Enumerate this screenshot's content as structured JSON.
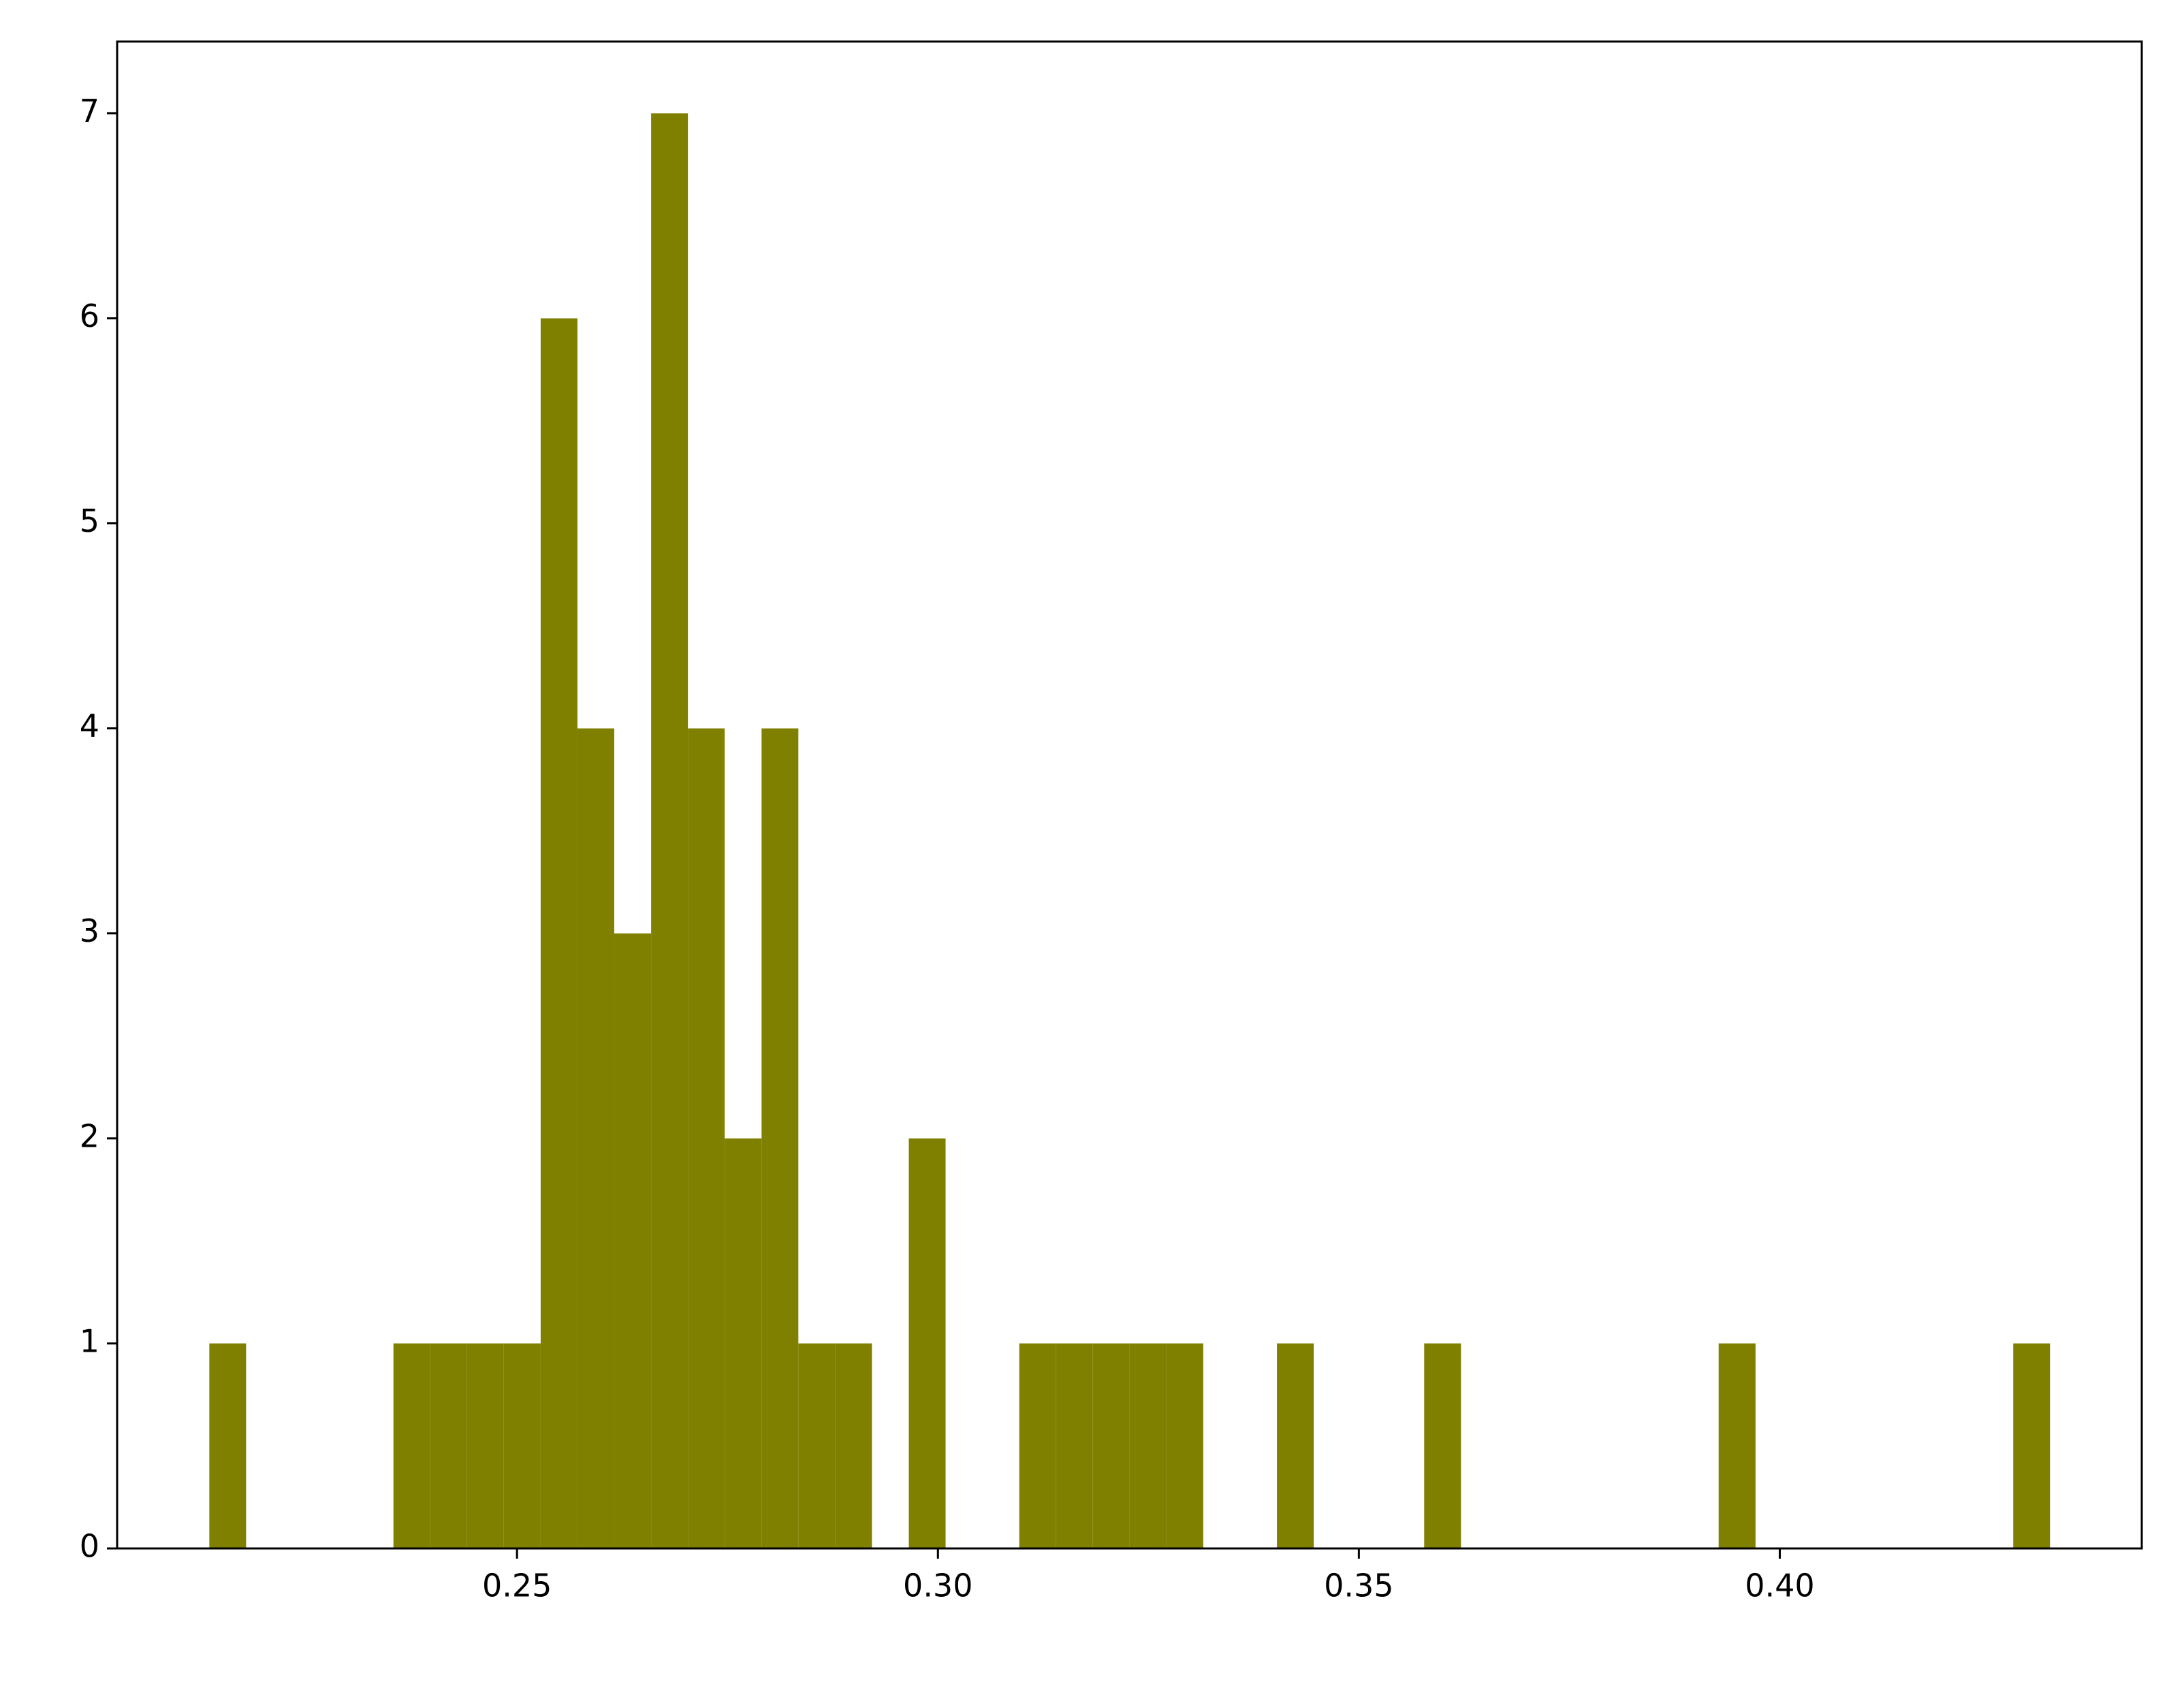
{
  "chart_data": {
    "type": "histogram",
    "bins": [
      0.21345,
      0.21782,
      0.2222,
      0.22657,
      0.23094,
      0.23532,
      0.23969,
      0.24406,
      0.24843,
      0.25281,
      0.25718,
      0.26155,
      0.26593,
      0.2703,
      0.27467,
      0.27905,
      0.28342,
      0.28779,
      0.29216,
      0.29654,
      0.30091,
      0.30528,
      0.30966,
      0.31403,
      0.3184,
      0.32278,
      0.32715,
      0.33152,
      0.33589,
      0.34027,
      0.34464,
      0.34901,
      0.35339,
      0.35776,
      0.36213,
      0.36651,
      0.37088,
      0.37525,
      0.37962,
      0.384,
      0.38837,
      0.39274,
      0.39712,
      0.40149,
      0.40586,
      0.41024,
      0.41461,
      0.41898,
      0.42335,
      0.42773,
      0.4321
    ],
    "values": [
      1,
      0,
      0,
      0,
      0,
      1,
      1,
      1,
      1,
      6,
      4,
      3,
      7,
      4,
      2,
      4,
      1,
      1,
      0,
      2,
      0,
      0,
      1,
      1,
      1,
      1,
      1,
      0,
      0,
      1,
      0,
      0,
      0,
      1,
      0,
      0,
      0,
      0,
      0,
      0,
      0,
      1,
      0,
      0,
      0,
      0,
      0,
      0,
      0,
      1
    ],
    "color": "#808000",
    "xlim": [
      0.2025,
      0.443
    ],
    "xticks": [
      {
        "value": 0.25,
        "label": "0.25"
      },
      {
        "value": 0.3,
        "label": "0.30"
      },
      {
        "value": 0.35,
        "label": "0.35"
      },
      {
        "value": 0.4,
        "label": "0.40"
      }
    ],
    "ylim": [
      0,
      7.35
    ],
    "yticks": [
      0,
      1,
      2,
      3,
      4,
      5,
      6,
      7
    ],
    "grid": false
  }
}
